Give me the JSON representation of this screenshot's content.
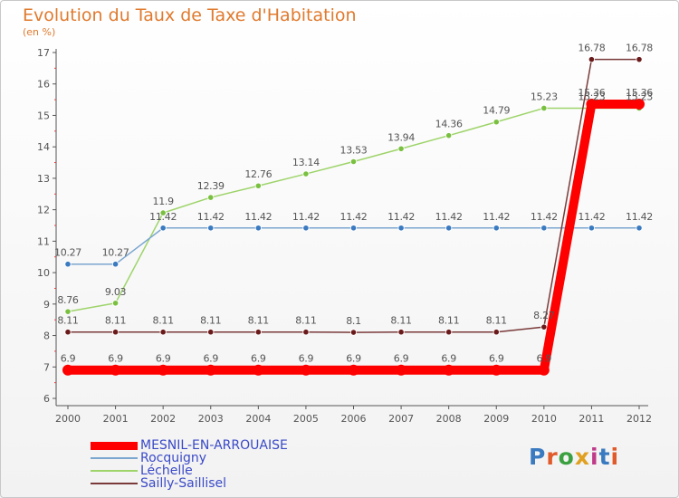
{
  "title": "Evolution du Taux de Taxe d'Habitation",
  "subtitle": "(en %)",
  "logo": "Proxiti",
  "chart_data": {
    "type": "line",
    "title": "Evolution du Taux de Taxe d'Habitation",
    "ylabel": "(en %)",
    "xlabel": "",
    "ylim": [
      6,
      17
    ],
    "yticks": [
      "6",
      "7",
      "8",
      "9",
      "10",
      "11",
      "12",
      "13",
      "14",
      "15",
      "16",
      "17"
    ],
    "categories": [
      "2000",
      "2001",
      "2002",
      "2003",
      "2004",
      "2005",
      "2006",
      "2007",
      "2008",
      "2009",
      "2010",
      "2011",
      "2012"
    ],
    "series": [
      {
        "name": "MESNIL-EN-ARROUAISE",
        "color": "#ff0000",
        "values": [
          6.9,
          6.9,
          6.9,
          6.9,
          6.9,
          6.9,
          6.9,
          6.9,
          6.9,
          6.9,
          6.9,
          15.36,
          15.36
        ],
        "labels": [
          "6.9",
          "6.9",
          "6.9",
          "6.9",
          "6.9",
          "6.9",
          "6.9",
          "6.9",
          "6.9",
          "6.9",
          "6.9",
          "15.36",
          "15.36"
        ]
      },
      {
        "name": "Rocquigny",
        "color": "#7aa6d0",
        "values": [
          10.27,
          10.27,
          11.42,
          11.42,
          11.42,
          11.42,
          11.42,
          11.42,
          11.42,
          11.42,
          11.42,
          11.42,
          11.42
        ],
        "labels": [
          "10.27",
          "10.27",
          "11.42",
          "11.42",
          "11.42",
          "11.42",
          "11.42",
          "11.42",
          "11.42",
          "11.42",
          "11.42",
          "11.42",
          "11.42"
        ]
      },
      {
        "name": "Léchelle",
        "color": "#9ed46a",
        "values": [
          8.76,
          9.03,
          11.9,
          12.39,
          12.76,
          13.14,
          13.53,
          13.94,
          14.36,
          14.79,
          15.23,
          15.23,
          15.23
        ],
        "labels": [
          "8.76",
          "9.03",
          "11.9",
          "12.39",
          "12.76",
          "13.14",
          "13.53",
          "13.94",
          "14.36",
          "14.79",
          "15.23",
          "15.23",
          "15.23"
        ]
      },
      {
        "name": "Sailly-Saillisel",
        "color": "#7a3a3a",
        "values": [
          8.11,
          8.11,
          8.11,
          8.11,
          8.11,
          8.11,
          8.1,
          8.11,
          8.11,
          8.11,
          8.27,
          16.78,
          16.78
        ],
        "labels": [
          "8.11",
          "8.11",
          "8.11",
          "8.11",
          "8.11",
          "8.11",
          "8.1",
          "8.11",
          "8.11",
          "8.11",
          "8.27",
          "16.78",
          "16.78"
        ]
      }
    ]
  }
}
